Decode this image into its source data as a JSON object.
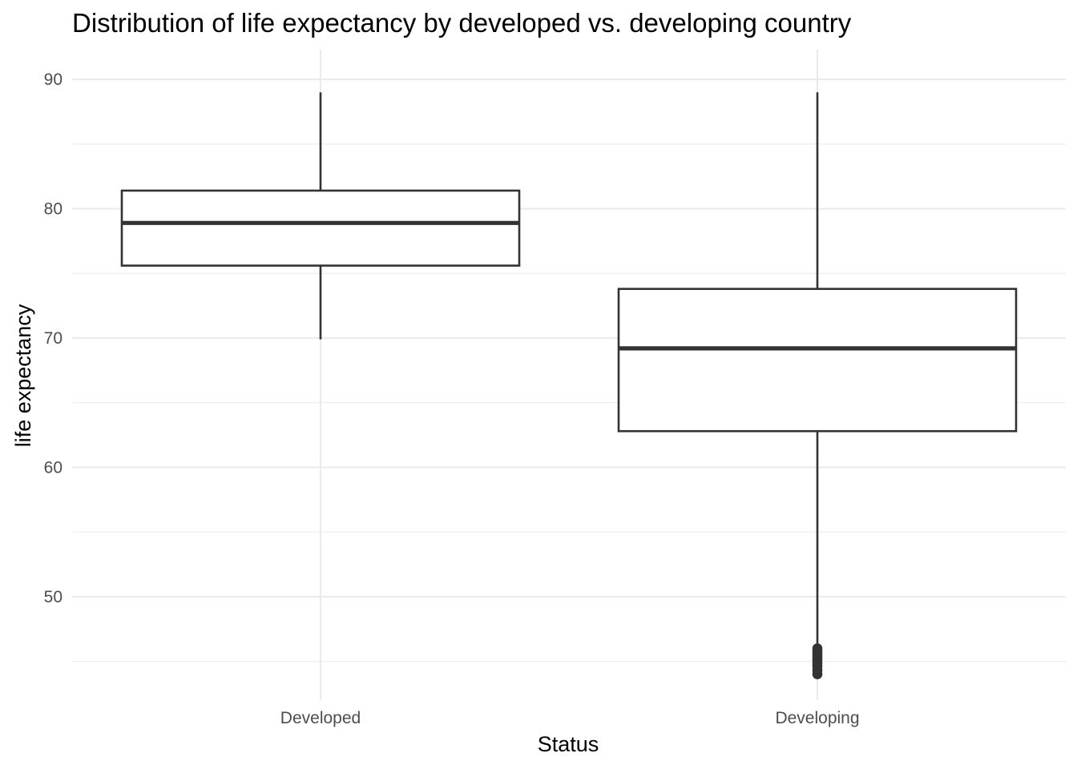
{
  "chart_data": {
    "type": "boxplot",
    "title": "Distribution of life expectancy by developed vs. developing country",
    "xlabel": "Status",
    "ylabel": "life expectancy",
    "ylim": [
      42.0,
      92.3
    ],
    "yticks": [
      50,
      60,
      70,
      80,
      90
    ],
    "grid": true,
    "legend": "none",
    "categories": [
      "Developed",
      "Developing"
    ],
    "boxes": [
      {
        "category": "Developed",
        "whisker_low": 69.9,
        "q1": 75.6,
        "median": 78.9,
        "q3": 81.4,
        "whisker_high": 89.0,
        "outliers": []
      },
      {
        "category": "Developing",
        "whisker_low": 46.2,
        "q1": 62.8,
        "median": 69.2,
        "q3": 73.8,
        "whisker_high": 89.0,
        "outliers": [
          44.0,
          44.3,
          44.6,
          44.8,
          45.0,
          45.2,
          45.4,
          45.6,
          45.8,
          46.0
        ]
      }
    ],
    "colors": {
      "box_fill": "#ffffff",
      "box_line": "#333333",
      "grid": "#ebebeb",
      "tick_text": "#4d4d4d"
    }
  }
}
